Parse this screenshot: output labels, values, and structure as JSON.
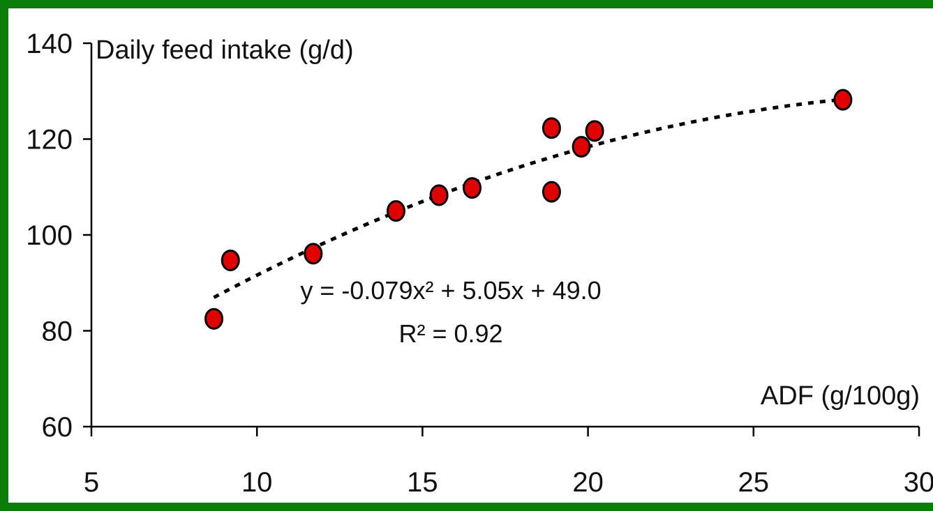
{
  "colors": {
    "border": "#0a7d0a",
    "marker_fill": "#e00000",
    "marker_stroke": "#000000",
    "trendline": "#000000",
    "axis": "#000000"
  },
  "chart_data": {
    "type": "scatter",
    "ylabel": "Daily feed intake (g/d)",
    "xlabel": "ADF (g/100g)",
    "xlim": [
      5,
      30
    ],
    "ylim": [
      60,
      140
    ],
    "xticks": [
      "5",
      "10",
      "15",
      "20",
      "25",
      "30"
    ],
    "yticks": [
      "60",
      "80",
      "100",
      "120",
      "140"
    ],
    "series": [
      {
        "x": [
          8.7,
          9.2,
          11.7,
          14.2,
          15.5,
          16.5,
          18.9,
          18.9,
          19.8,
          20.2,
          27.7
        ],
        "y": [
          82.5,
          94.7,
          96.1,
          105.0,
          108.3,
          109.8,
          122.3,
          109.0,
          118.4,
          121.7,
          128.2
        ]
      }
    ],
    "trendline": {
      "type": "polynomial",
      "coefficients": {
        "a": -0.079,
        "b": 5.05,
        "c": 49.0
      },
      "x_range": [
        8.7,
        27.7
      ],
      "equation_text": "y = -0.079x² + 5.05x + 49.0",
      "r2_text": "R² = 0.92"
    },
    "grid": false,
    "legend": "none"
  }
}
